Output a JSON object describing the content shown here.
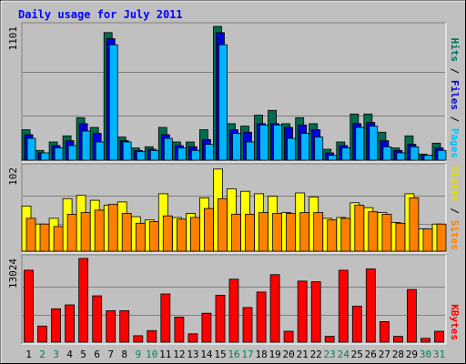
{
  "chart_data": [
    {
      "type": "bar",
      "title": "Daily usage for July 2011",
      "panel": "hits-files-pages",
      "ymax_label": "1101",
      "ylim": [
        0,
        1101
      ],
      "right_label": [
        {
          "text": "Pages",
          "color": "#00c0ff"
        },
        {
          "text": "Files",
          "color": "#0000d0"
        },
        {
          "text": "Hits",
          "color": "#007058"
        }
      ],
      "categories": [
        "1",
        "2",
        "3",
        "4",
        "5",
        "6",
        "7",
        "8",
        "9",
        "10",
        "11",
        "12",
        "13",
        "14",
        "15",
        "16",
        "17",
        "18",
        "19",
        "20",
        "21",
        "22",
        "23",
        "24",
        "25",
        "26",
        "27",
        "28",
        "29",
        "30",
        "31"
      ],
      "series": [
        {
          "name": "Hits",
          "color": "#006c4e",
          "values": [
            250,
            80,
            150,
            200,
            350,
            270,
            1050,
            190,
            100,
            110,
            270,
            150,
            150,
            250,
            1101,
            300,
            280,
            370,
            410,
            300,
            350,
            300,
            90,
            150,
            380,
            380,
            230,
            100,
            200,
            50,
            140
          ]
        },
        {
          "name": "Files",
          "color": "#0000d8",
          "values": [
            210,
            60,
            120,
            160,
            300,
            220,
            1000,
            160,
            80,
            90,
            210,
            120,
            110,
            170,
            1050,
            250,
            230,
            300,
            300,
            270,
            290,
            250,
            60,
            120,
            300,
            310,
            160,
            80,
            130,
            40,
            100
          ]
        },
        {
          "name": "Pages",
          "color": "#00b4ff",
          "values": [
            180,
            60,
            100,
            120,
            240,
            150,
            950,
            150,
            70,
            80,
            180,
            100,
            80,
            130,
            950,
            220,
            150,
            290,
            290,
            180,
            220,
            190,
            40,
            100,
            270,
            280,
            110,
            60,
            110,
            40,
            80
          ]
        }
      ]
    },
    {
      "type": "bar",
      "panel": "visits-sites",
      "ymax_label": "102",
      "ylim": [
        0,
        102
      ],
      "right_label": [
        {
          "text": "Sites",
          "color": "#ff8000"
        },
        {
          "text": "Visits",
          "color": "#e0e000"
        }
      ],
      "categories": [
        "1",
        "2",
        "3",
        "4",
        "5",
        "6",
        "7",
        "8",
        "9",
        "10",
        "11",
        "12",
        "13",
        "14",
        "15",
        "16",
        "17",
        "18",
        "19",
        "20",
        "21",
        "22",
        "23",
        "24",
        "25",
        "26",
        "27",
        "28",
        "29",
        "30",
        "31"
      ],
      "series": [
        {
          "name": "Visits",
          "color": "#ffff00",
          "values": [
            55,
            33,
            40,
            64,
            68,
            62,
            56,
            60,
            42,
            38,
            70,
            41,
            46,
            65,
            100,
            76,
            73,
            70,
            67,
            47,
            71,
            66,
            40,
            41,
            59,
            53,
            47,
            35,
            70,
            27,
            33
          ]
        },
        {
          "name": "Sites",
          "color": "#ff8000",
          "values": [
            40,
            33,
            30,
            45,
            47,
            50,
            57,
            46,
            34,
            36,
            43,
            39,
            41,
            52,
            64,
            45,
            45,
            47,
            46,
            46,
            47,
            47,
            38,
            40,
            56,
            48,
            45,
            34,
            65,
            27,
            33
          ]
        }
      ]
    },
    {
      "type": "bar",
      "panel": "kbytes",
      "ymax_label": "13024",
      "ylim": [
        0,
        13024
      ],
      "right_label": [
        {
          "text": "KBytes",
          "color": "#ff0000"
        }
      ],
      "categories": [
        "1",
        "2",
        "3",
        "4",
        "5",
        "6",
        "7",
        "8",
        "9",
        "10",
        "11",
        "12",
        "13",
        "14",
        "15",
        "16",
        "17",
        "18",
        "19",
        "20",
        "21",
        "22",
        "23",
        "24",
        "25",
        "26",
        "27",
        "28",
        "29",
        "30",
        "31"
      ],
      "series": [
        {
          "name": "KBytes",
          "color": "#ff0000",
          "values": [
            11200,
            2500,
            5200,
            5800,
            13024,
            7200,
            4900,
            4900,
            1000,
            1800,
            7500,
            3900,
            1300,
            4500,
            7300,
            9800,
            5400,
            7800,
            10500,
            1700,
            9500,
            9400,
            900,
            11200,
            5600,
            11400,
            3200,
            900,
            8200,
            600,
            1700
          ]
        }
      ]
    }
  ],
  "x_labels": [
    {
      "text": "1",
      "weekend": false
    },
    {
      "text": "2",
      "weekend": true
    },
    {
      "text": "3",
      "weekend": true
    },
    {
      "text": "4",
      "weekend": false
    },
    {
      "text": "5",
      "weekend": false
    },
    {
      "text": "6",
      "weekend": false
    },
    {
      "text": "7",
      "weekend": false
    },
    {
      "text": "8",
      "weekend": false
    },
    {
      "text": "9",
      "weekend": true
    },
    {
      "text": "10",
      "weekend": true
    },
    {
      "text": "11",
      "weekend": false
    },
    {
      "text": "12",
      "weekend": false
    },
    {
      "text": "13",
      "weekend": false
    },
    {
      "text": "14",
      "weekend": false
    },
    {
      "text": "15",
      "weekend": false
    },
    {
      "text": "16",
      "weekend": true
    },
    {
      "text": "17",
      "weekend": true
    },
    {
      "text": "18",
      "weekend": false
    },
    {
      "text": "19",
      "weekend": false
    },
    {
      "text": "20",
      "weekend": false
    },
    {
      "text": "21",
      "weekend": false
    },
    {
      "text": "22",
      "weekend": false
    },
    {
      "text": "23",
      "weekend": true
    },
    {
      "text": "24",
      "weekend": true
    },
    {
      "text": "25",
      "weekend": false
    },
    {
      "text": "26",
      "weekend": false
    },
    {
      "text": "27",
      "weekend": false
    },
    {
      "text": "28",
      "weekend": false
    },
    {
      "text": "29",
      "weekend": false
    },
    {
      "text": "30",
      "weekend": true
    },
    {
      "text": "31",
      "weekend": true
    }
  ],
  "colors": {
    "background": "#c0c0c0",
    "title": "#0000ff",
    "weekday_label": "#000000",
    "weekend_label": "#00805c"
  }
}
